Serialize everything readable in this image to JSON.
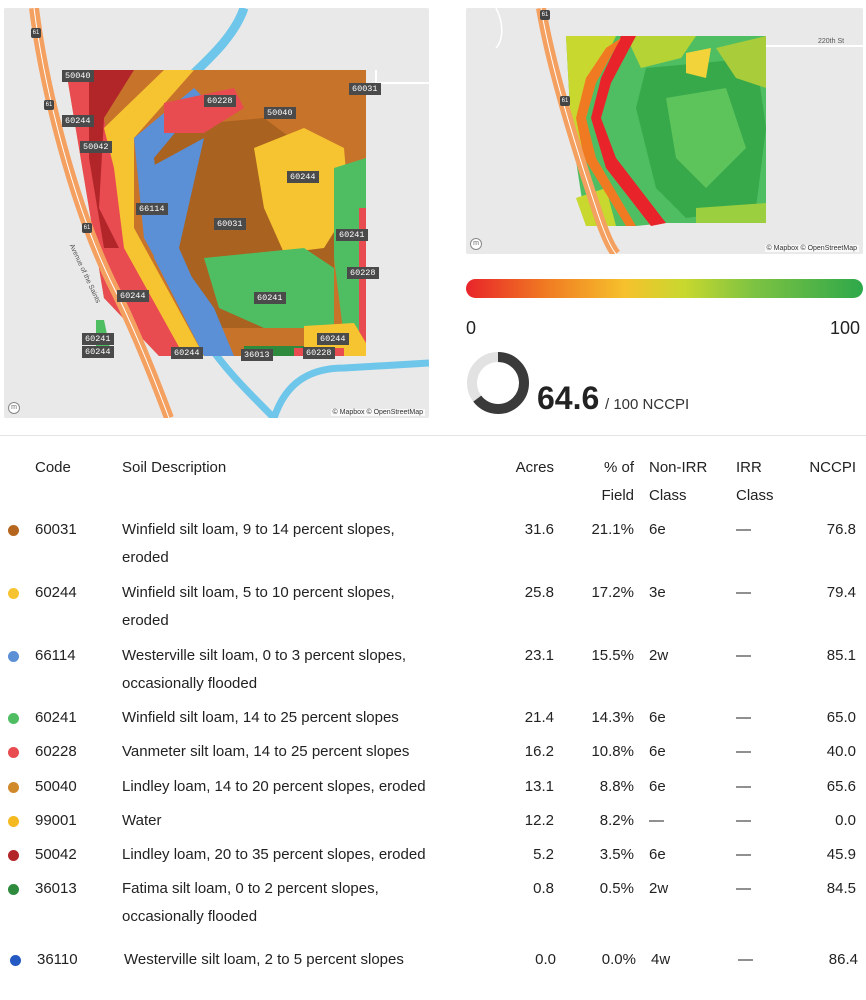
{
  "soil_map": {
    "attribution": "© Mapbox © OpenStreetMap",
    "road_label": "Avenue of the Saints",
    "highway_number": "61",
    "labels": [
      "50040",
      "60228",
      "50040",
      "60031",
      "60244",
      "50042",
      "60244",
      "66114",
      "60031",
      "60241",
      "60228",
      "60241",
      "60244",
      "60241",
      "60244",
      "60244",
      "36013",
      "60228",
      "60244"
    ]
  },
  "yield_map": {
    "attribution": "© Mapbox © OpenStreetMap",
    "road_label": "220th St",
    "highway_number": "61"
  },
  "scale": {
    "min": "0",
    "max": "100",
    "gradient_start": "#e8242a",
    "gradient_end": "#2ea84a"
  },
  "score": {
    "value": "64.6",
    "unit": "/ 100 NCCPI",
    "fraction": 0.646
  },
  "table": {
    "headers": {
      "code": "Code",
      "desc": "Soil Description",
      "acres": "Acres",
      "pct_1": "% of",
      "pct_2": "Field",
      "nonirr_1": "Non-IRR",
      "nonirr_2": "Class",
      "irr_1": "IRR",
      "irr_2": "Class",
      "nccpi": "NCCPI"
    },
    "rows": [
      {
        "color": "#b5651d",
        "code": "60031",
        "desc1": "Winfield silt loam, 9 to 14 percent slopes,",
        "desc2": "eroded",
        "acres": "31.6",
        "pct": "21.1%",
        "nonirr": "6e",
        "irr": "—",
        "nccpi": "76.8"
      },
      {
        "color": "#f7c431",
        "code": "60244",
        "desc1": "Winfield silt loam, 5 to 10 percent slopes,",
        "desc2": "eroded",
        "acres": "25.8",
        "pct": "17.2%",
        "nonirr": "3e",
        "irr": "—",
        "nccpi": "79.4"
      },
      {
        "color": "#5b8fd6",
        "code": "66114",
        "desc1": "Westerville silt loam, 0 to 3 percent slopes,",
        "desc2": "occasionally flooded",
        "acres": "23.1",
        "pct": "15.5%",
        "nonirr": "2w",
        "irr": "—",
        "nccpi": "85.1"
      },
      {
        "color": "#4fbe63",
        "code": "60241",
        "desc1": "Winfield silt loam, 14 to 25 percent slopes",
        "desc2": "",
        "acres": "21.4",
        "pct": "14.3%",
        "nonirr": "6e",
        "irr": "—",
        "nccpi": "65.0"
      },
      {
        "color": "#e84b50",
        "code": "60228",
        "desc1": "Vanmeter silt loam, 14 to 25 percent slopes",
        "desc2": "",
        "acres": "16.2",
        "pct": "10.8%",
        "nonirr": "6e",
        "irr": "—",
        "nccpi": "40.0"
      },
      {
        "color": "#d08a2a",
        "code": "50040",
        "desc1": "Lindley loam, 14 to 20 percent slopes, eroded",
        "desc2": "",
        "acres": "13.1",
        "pct": "8.8%",
        "nonirr": "6e",
        "irr": "—",
        "nccpi": "65.6"
      },
      {
        "color": "#f5b921",
        "code": "99001",
        "desc1": "Water",
        "desc2": "",
        "acres": "12.2",
        "pct": "8.2%",
        "nonirr": "—",
        "irr": "—",
        "nccpi": "0.0"
      },
      {
        "color": "#b2262a",
        "code": "50042",
        "desc1": "Lindley loam, 20 to 35 percent slopes, eroded",
        "desc2": "",
        "acres": "5.2",
        "pct": "3.5%",
        "nonirr": "6e",
        "irr": "—",
        "nccpi": "45.9"
      },
      {
        "color": "#2e8b3e",
        "code": "36013",
        "desc1": "Fatima silt loam, 0 to 2 percent slopes,",
        "desc2": "occasionally flooded",
        "acres": "0.8",
        "pct": "0.5%",
        "nonirr": "2w",
        "irr": "—",
        "nccpi": "84.5"
      },
      {
        "color": "#2458c2",
        "code": "36110",
        "desc1": "Westerville silt loam, 2 to 5 percent slopes",
        "desc2": "",
        "acres": "0.0",
        "pct": "0.0%",
        "nonirr": "4w",
        "irr": "—",
        "nccpi": "86.4"
      }
    ]
  }
}
